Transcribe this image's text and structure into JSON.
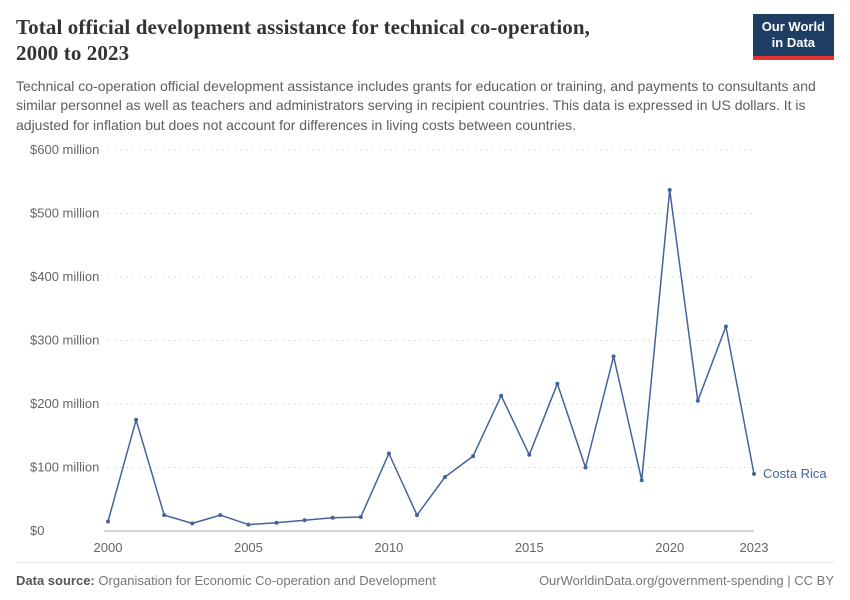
{
  "header": {
    "title": "Total official development assistance for technical co-operation, 2000 to 2023",
    "logo": {
      "line1": "Our World",
      "line2": "in Data"
    },
    "subtitle": "Technical co-operation official development assistance includes grants for education or training, and payments to consultants and similar personnel as well as teachers and administrators serving in recipient countries. This data is expressed in US dollars. It is adjusted for inflation but does not account for differences in living costs between countries."
  },
  "colors": {
    "line": "#44639c",
    "grid": "#dcdcdc",
    "axis": "#a8a8a8",
    "tick_text": "#666666",
    "logo_bg": "#1d3d63",
    "logo_red": "#e5332d"
  },
  "chart_data": {
    "type": "line",
    "title": "Total official development assistance for technical co-operation, 2000 to 2023",
    "xlabel": "",
    "ylabel": "",
    "x": [
      2000,
      2001,
      2002,
      2003,
      2004,
      2005,
      2006,
      2007,
      2008,
      2009,
      2010,
      2011,
      2012,
      2013,
      2014,
      2015,
      2016,
      2017,
      2018,
      2019,
      2020,
      2021,
      2022,
      2023
    ],
    "series": [
      {
        "name": "Costa Rica",
        "color": "#44639c",
        "values": [
          15,
          175,
          25,
          12,
          25,
          10,
          13,
          17,
          21,
          22,
          122,
          25,
          85,
          118,
          213,
          120,
          232,
          100,
          275,
          80,
          537,
          205,
          322,
          90
        ]
      }
    ],
    "xlim": [
      2000,
      2023
    ],
    "ylim": [
      0,
      600
    ],
    "yticks": [
      {
        "v": 0,
        "label": "$0"
      },
      {
        "v": 100,
        "label": "$100 million"
      },
      {
        "v": 200,
        "label": "$200 million"
      },
      {
        "v": 300,
        "label": "$300 million"
      },
      {
        "v": 400,
        "label": "$400 million"
      },
      {
        "v": 500,
        "label": "$500 million"
      },
      {
        "v": 600,
        "label": "$600 million"
      }
    ],
    "xticks": [
      {
        "v": 2000,
        "label": "2000"
      },
      {
        "v": 2005,
        "label": "2005"
      },
      {
        "v": 2010,
        "label": "2010"
      },
      {
        "v": 2015,
        "label": "2015"
      },
      {
        "v": 2020,
        "label": "2020"
      },
      {
        "v": 2023,
        "label": "2023"
      }
    ],
    "grid": "horizontal-dashed",
    "legend_position": "end-of-line"
  },
  "footer": {
    "source_label": "Data source:",
    "source": "Organisation for Economic Co-operation and Development",
    "credit": "OurWorldinData.org/government-spending | CC BY"
  }
}
